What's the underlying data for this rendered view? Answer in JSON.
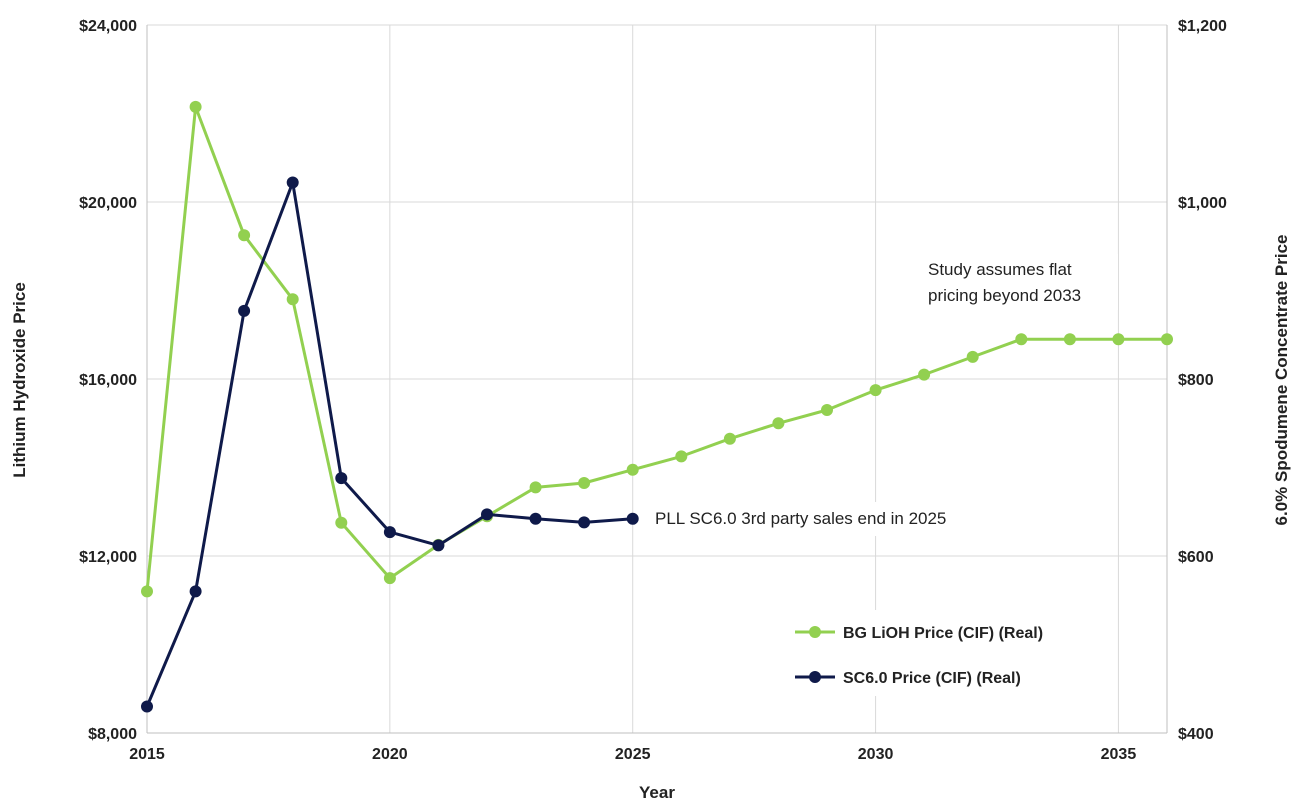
{
  "chart_data": {
    "type": "line",
    "xlabel": "Year",
    "ylabel_left": "Lithium Hydroxide Price",
    "ylabel_right": "6.0% Spodumene Concentrate Price",
    "xlim": [
      2015,
      2036
    ],
    "ylim_left": [
      8000,
      24000
    ],
    "ylim_right": [
      400,
      1200
    ],
    "x_ticks": [
      2015,
      2020,
      2025,
      2030,
      2035
    ],
    "x_tick_labels": [
      "2015",
      "2020",
      "2025",
      "2030",
      "2035"
    ],
    "y_left_ticks": [
      8000,
      12000,
      16000,
      20000,
      24000
    ],
    "y_left_tick_labels": [
      "$8,000",
      "$12,000",
      "$16,000",
      "$20,000",
      "$24,000"
    ],
    "y_right_ticks": [
      400,
      600,
      800,
      1000,
      1200
    ],
    "y_right_tick_labels": [
      "$400",
      "$600",
      "$800",
      "$1,000",
      "$1,200"
    ],
    "grid": true,
    "legend_position": "bottom-right",
    "series": [
      {
        "name": "BG LiOH Price (CIF) (Real)",
        "axis": "left",
        "color": "#92d050",
        "x": [
          2015,
          2016,
          2017,
          2018,
          2019,
          2020,
          2021,
          2022,
          2023,
          2024,
          2025,
          2026,
          2027,
          2028,
          2029,
          2030,
          2031,
          2032,
          2033,
          2034,
          2035,
          2036
        ],
        "values": [
          11200,
          22150,
          19250,
          17800,
          12750,
          11500,
          12250,
          12900,
          13550,
          13650,
          13950,
          14250,
          14650,
          15000,
          15300,
          15750,
          16100,
          16500,
          16900,
          16900,
          16900,
          16900
        ]
      },
      {
        "name": "SC6.0 Price (CIF) (Real)",
        "axis": "right",
        "color": "#0f1a4a",
        "x": [
          2015,
          2016,
          2017,
          2018,
          2019,
          2020,
          2021,
          2022,
          2023,
          2024,
          2025
        ],
        "values": [
          430,
          560,
          877,
          1022,
          688,
          627,
          612,
          647,
          642,
          638,
          642
        ]
      }
    ],
    "annotations": [
      {
        "id": "flat",
        "lines": [
          "Study assumes flat",
          "pricing beyond 2033"
        ]
      },
      {
        "id": "end",
        "lines": [
          "PLL SC6.0 3rd party sales end in 2025"
        ]
      }
    ]
  }
}
